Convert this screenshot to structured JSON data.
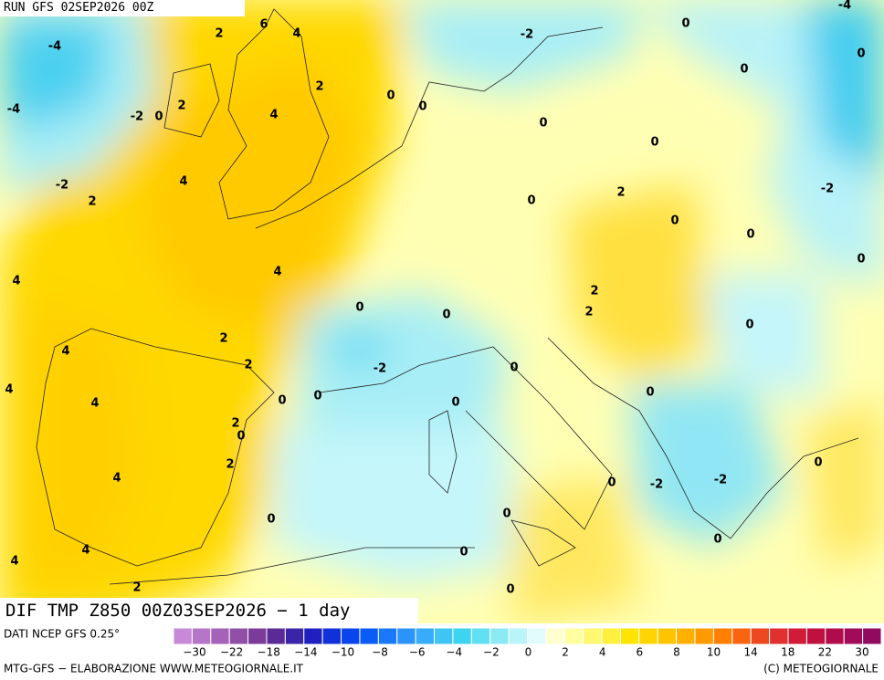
{
  "header": {
    "run": "RUN GFS 02SEP2026 00Z"
  },
  "title": "DIF TMP Z850 00Z03SEP2026 − 1 day",
  "map": {
    "contour_labels": [
      "2",
      "6",
      "4",
      "-4",
      "2",
      "0",
      "0",
      "2",
      "4",
      "-4",
      "-2",
      "0",
      "-2",
      "0",
      "-4",
      "0",
      "0",
      "0",
      "0",
      "-2",
      "2",
      "4",
      "0",
      "2",
      "-2",
      "0",
      "0",
      "0",
      "4",
      "4",
      "0",
      "0",
      "2",
      "2",
      "0",
      "4",
      "2",
      "2",
      "-2",
      "0",
      "4",
      "4",
      "0",
      "0",
      "0",
      "0",
      "2",
      "0",
      "2",
      "4",
      "0",
      "-2",
      "-2",
      "0",
      "0",
      "0",
      "4",
      "4",
      "0",
      "0",
      "2",
      "0"
    ]
  },
  "legend": {
    "source": "DATI NCEP GFS 0.25°",
    "colors": [
      "#c88ad6",
      "#b676c8",
      "#a462b8",
      "#9050a8",
      "#7a3c98",
      "#5a2a96",
      "#3a24a8",
      "#2020c0",
      "#1030d8",
      "#0a44ec",
      "#0a5cf6",
      "#1a78fa",
      "#2a94fc",
      "#36acfa",
      "#40c4f4",
      "#3cd4f0",
      "#60e0f2",
      "#8ceaf4",
      "#b8f4f8",
      "#e2fcfc",
      "#ffffd0",
      "#ffffa0",
      "#fff870",
      "#fff040",
      "#ffe400",
      "#ffd400",
      "#ffc400",
      "#ffb000",
      "#ff9a00",
      "#ff8000",
      "#f86410",
      "#ee4820",
      "#e03030",
      "#d01c38",
      "#c01040",
      "#b00c4c",
      "#a00c58",
      "#900a60"
    ],
    "labels": [
      "−30",
      "−22",
      "−18",
      "−14",
      "−10",
      "−8",
      "−6",
      "−4",
      "−2",
      "0",
      "2",
      "4",
      "6",
      "8",
      "10",
      "14",
      "18",
      "22",
      "30"
    ]
  },
  "footer": {
    "credit": "MTG-GFS − ELABORAZIONE WWW.METEOGIORNALE.IT",
    "copyright": "(C) METEOGIORNALE"
  }
}
